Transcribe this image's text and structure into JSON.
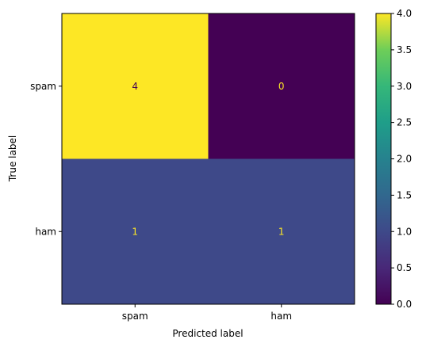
{
  "chart_data": {
    "type": "heatmap",
    "x_categories": [
      "spam",
      "ham"
    ],
    "y_categories": [
      "spam",
      "ham"
    ],
    "matrix": [
      [
        4,
        0
      ],
      [
        1,
        1
      ]
    ],
    "xlabel": "Predicted label",
    "ylabel": "True label",
    "colorbar": {
      "range": [
        0,
        4
      ],
      "ticks": [
        "0.0",
        "0.5",
        "1.0",
        "1.5",
        "2.0",
        "2.5",
        "3.0",
        "3.5",
        "4.0"
      ],
      "colormap": "viridis"
    },
    "colors": {
      "max": "#fde725",
      "min": "#440154",
      "mid_1": "#3b528b",
      "label_on_light": "#440154",
      "label_on_dark": "#fde725"
    }
  }
}
